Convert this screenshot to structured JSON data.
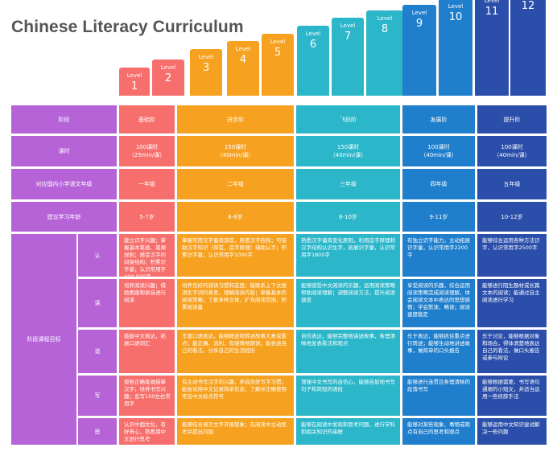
{
  "title": "Chinese Literacy Curriculum",
  "level_word": "Level",
  "levels": [
    "1",
    "2",
    "3",
    "4",
    "5",
    "6",
    "7",
    "8",
    "9",
    "10",
    "11",
    "12"
  ],
  "colors": {
    "label": "#b663d8",
    "stage1": "#f76f6d",
    "stage2": "#f6a220",
    "stage3": "#2bb6c9",
    "stage4": "#1f7fcc",
    "stage5": "#2a4eaa"
  },
  "rows": {
    "stage": {
      "label": "阶段",
      "values": [
        "基础阶",
        "进步阶",
        "飞跃阶",
        "发展阶",
        "提升阶"
      ]
    },
    "hours": {
      "label": "课时",
      "values": [
        [
          "100课时",
          "（25min/课）"
        ],
        [
          "150课时",
          "（40min/课）"
        ],
        [
          "150课时",
          "（40min/课）"
        ],
        [
          "100课时",
          "（40min/课）"
        ],
        [
          "100课时",
          "（40min/课）"
        ]
      ]
    },
    "grade": {
      "label": "对应国内小学语文年级",
      "values": [
        "一年级",
        "二年级",
        "三年级",
        "四年级",
        "五年级"
      ]
    },
    "age": {
      "label": "建议学习年龄",
      "values": [
        "5-7岁",
        "6-8岁",
        "8-10岁",
        "9-11岁",
        "10-12岁"
      ]
    }
  },
  "goals_label": "阶段课程目标",
  "goals": [
    {
      "label": "认",
      "values": [
        "建立识字兴趣；掌握基本笔画、笔顺规则；感受汉字的间架结构；积累识字量；认识常用字400-500字",
        "掌握常用汉字偏旁部首，熟悉汉字结构；可借助汉字知识（部首、造字原理）辅助认字；积累识字量；认识常用字1000字",
        "熟悉汉字偏旁变化原则，利用造字原理和汉字结构认识生字，拓展识字量，认识常用字1800字",
        "有独立识字能力，主动拓展识字量，认识常用字2200字",
        "能够综合运用各种方法识字，认识常用字2500字"
      ]
    },
    {
      "label": "读",
      "values": [
        "培养阅读兴趣；借助图画和拼音进行阅读",
        "培养良好的阅读习惯和态度；能联系上下文推测生字词的意思，理解阅读内容；掌握基本的阅读策略；了解多种文体，扩充阅读范围，积累阅读量",
        "能够感受中文阅读的乐趣，运用阅读策略帮助阅读理解；调整阅读方法，提升阅读速度",
        "享受阅读的乐趣，综合运用阅读策略完成阅读理解，体会阅读文本中表达的思想感情；学会默读、略读；阅读速度稳定",
        "能够进行陌生题材或长篇文本的阅读；能通过自主阅读进行学习"
      ]
    },
    {
      "label": "说",
      "values": [
        "鼓励中文表达，拓展口语词汇",
        "丰富口语表达，能够概述和转述故事大意或重点；能正确、流利、有感情地朗读；能表述自己的看法，分享自己的生活经历",
        "自信表达，能够完整地讲述故事，条理清晰地发表看法和观点",
        "乐于表达，能够抓住重点进行转述；能够生动地讲述故事，做简单的口头报告",
        "乐于讨论，能够根据对象和场合，得体清楚地表达自己的看法，做口头报告或参与辩论"
      ]
    },
    {
      "label": "写",
      "values": [
        "按照正确笔顺描摹汉字；培养书写兴趣；会写150左右常用字",
        "有主动书写汉字的兴趣，养成良好写字习惯；能尝试用中文记录简单信息；了解并正确使用常见中文标点符号",
        "增强中文书写的自信心，能够自如地书写句子和简短的语段",
        "能够进行连贯且条理清晰的段落书写",
        "能够根据需要，书写语句通顺的小短文，并适当运用一些修辞手法"
      ]
    },
    {
      "label": "思",
      "values": [
        "认识中国文化，有好奇心，熟悉用中文进行思考",
        "能够结合语言文字开展想象；在阅读中主动思考并提出问题",
        "能够在阅读中发现和思考问题，进行学科和相关知识的串联",
        "能够对某些现象、事物或观点有自己的思考和观点",
        "能够运用中文知识尝试解决一些问题"
      ]
    }
  ]
}
